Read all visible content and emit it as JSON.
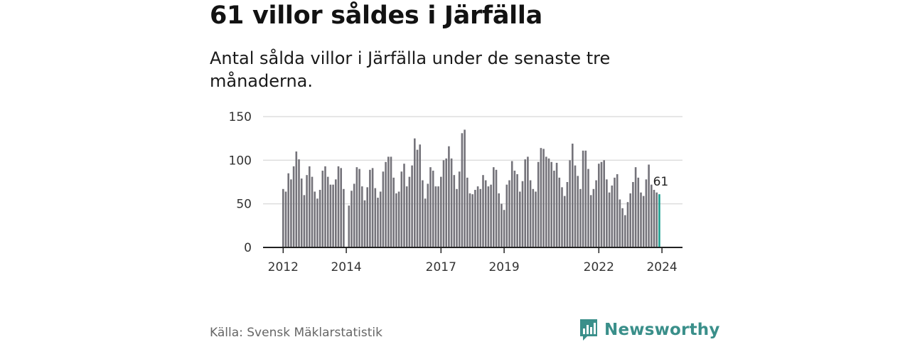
{
  "title": "61 villor såldes i Järfälla",
  "subtitle": "Antal sålda villor i Järfälla under de senaste tre månaderna.",
  "source": "Källa: Svensk Mäklarstatistik",
  "brand": {
    "name": "Newsworthy",
    "icon": "bar-chart-icon",
    "color": "#3a8f8a"
  },
  "colors": {
    "bar": "#74737a",
    "highlight": "#1a9e8f",
    "grid": "#dddddd",
    "axis": "#222222"
  },
  "chart_data": {
    "type": "bar",
    "title": "61 villor såldes i Järfälla",
    "xlabel": "",
    "ylabel": "",
    "ylim": [
      0,
      150
    ],
    "yticks": [
      0,
      50,
      100,
      150
    ],
    "grid": true,
    "xtick_labels": [
      {
        "label": "2012",
        "index": 0
      },
      {
        "label": "2014",
        "index": 24
      },
      {
        "label": "2017",
        "index": 60
      },
      {
        "label": "2019",
        "index": 84
      },
      {
        "label": "2022",
        "index": 120
      },
      {
        "label": "2024",
        "index": 144
      }
    ],
    "last_value_label": "61",
    "series": [
      {
        "name": "Antal sålda villor",
        "values": [
          67,
          64,
          85,
          78,
          93,
          110,
          101,
          79,
          60,
          83,
          93,
          81,
          64,
          56,
          66,
          88,
          93,
          81,
          72,
          72,
          78,
          93,
          91,
          67,
          0,
          48,
          65,
          73,
          92,
          90,
          70,
          54,
          69,
          89,
          91,
          68,
          57,
          64,
          87,
          98,
          104,
          104,
          80,
          62,
          64,
          87,
          96,
          70,
          81,
          94,
          125,
          112,
          118,
          77,
          56,
          73,
          92,
          88,
          70,
          70,
          81,
          100,
          102,
          116,
          102,
          83,
          67,
          87,
          131,
          135,
          80,
          62,
          61,
          66,
          70,
          67,
          83,
          77,
          70,
          72,
          92,
          89,
          62,
          50,
          43,
          72,
          77,
          99,
          88,
          84,
          64,
          76,
          101,
          104,
          77,
          67,
          64,
          98,
          114,
          113,
          104,
          102,
          98,
          88,
          97,
          80,
          69,
          59,
          75,
          100,
          119,
          94,
          82,
          67,
          111,
          111,
          90,
          60,
          67,
          77,
          96,
          98,
          100,
          78,
          63,
          71,
          80,
          84,
          55,
          45,
          37,
          52,
          62,
          75,
          92,
          80,
          63,
          59,
          78,
          95,
          72,
          66,
          63,
          61
        ]
      }
    ],
    "highlight_last": true
  }
}
